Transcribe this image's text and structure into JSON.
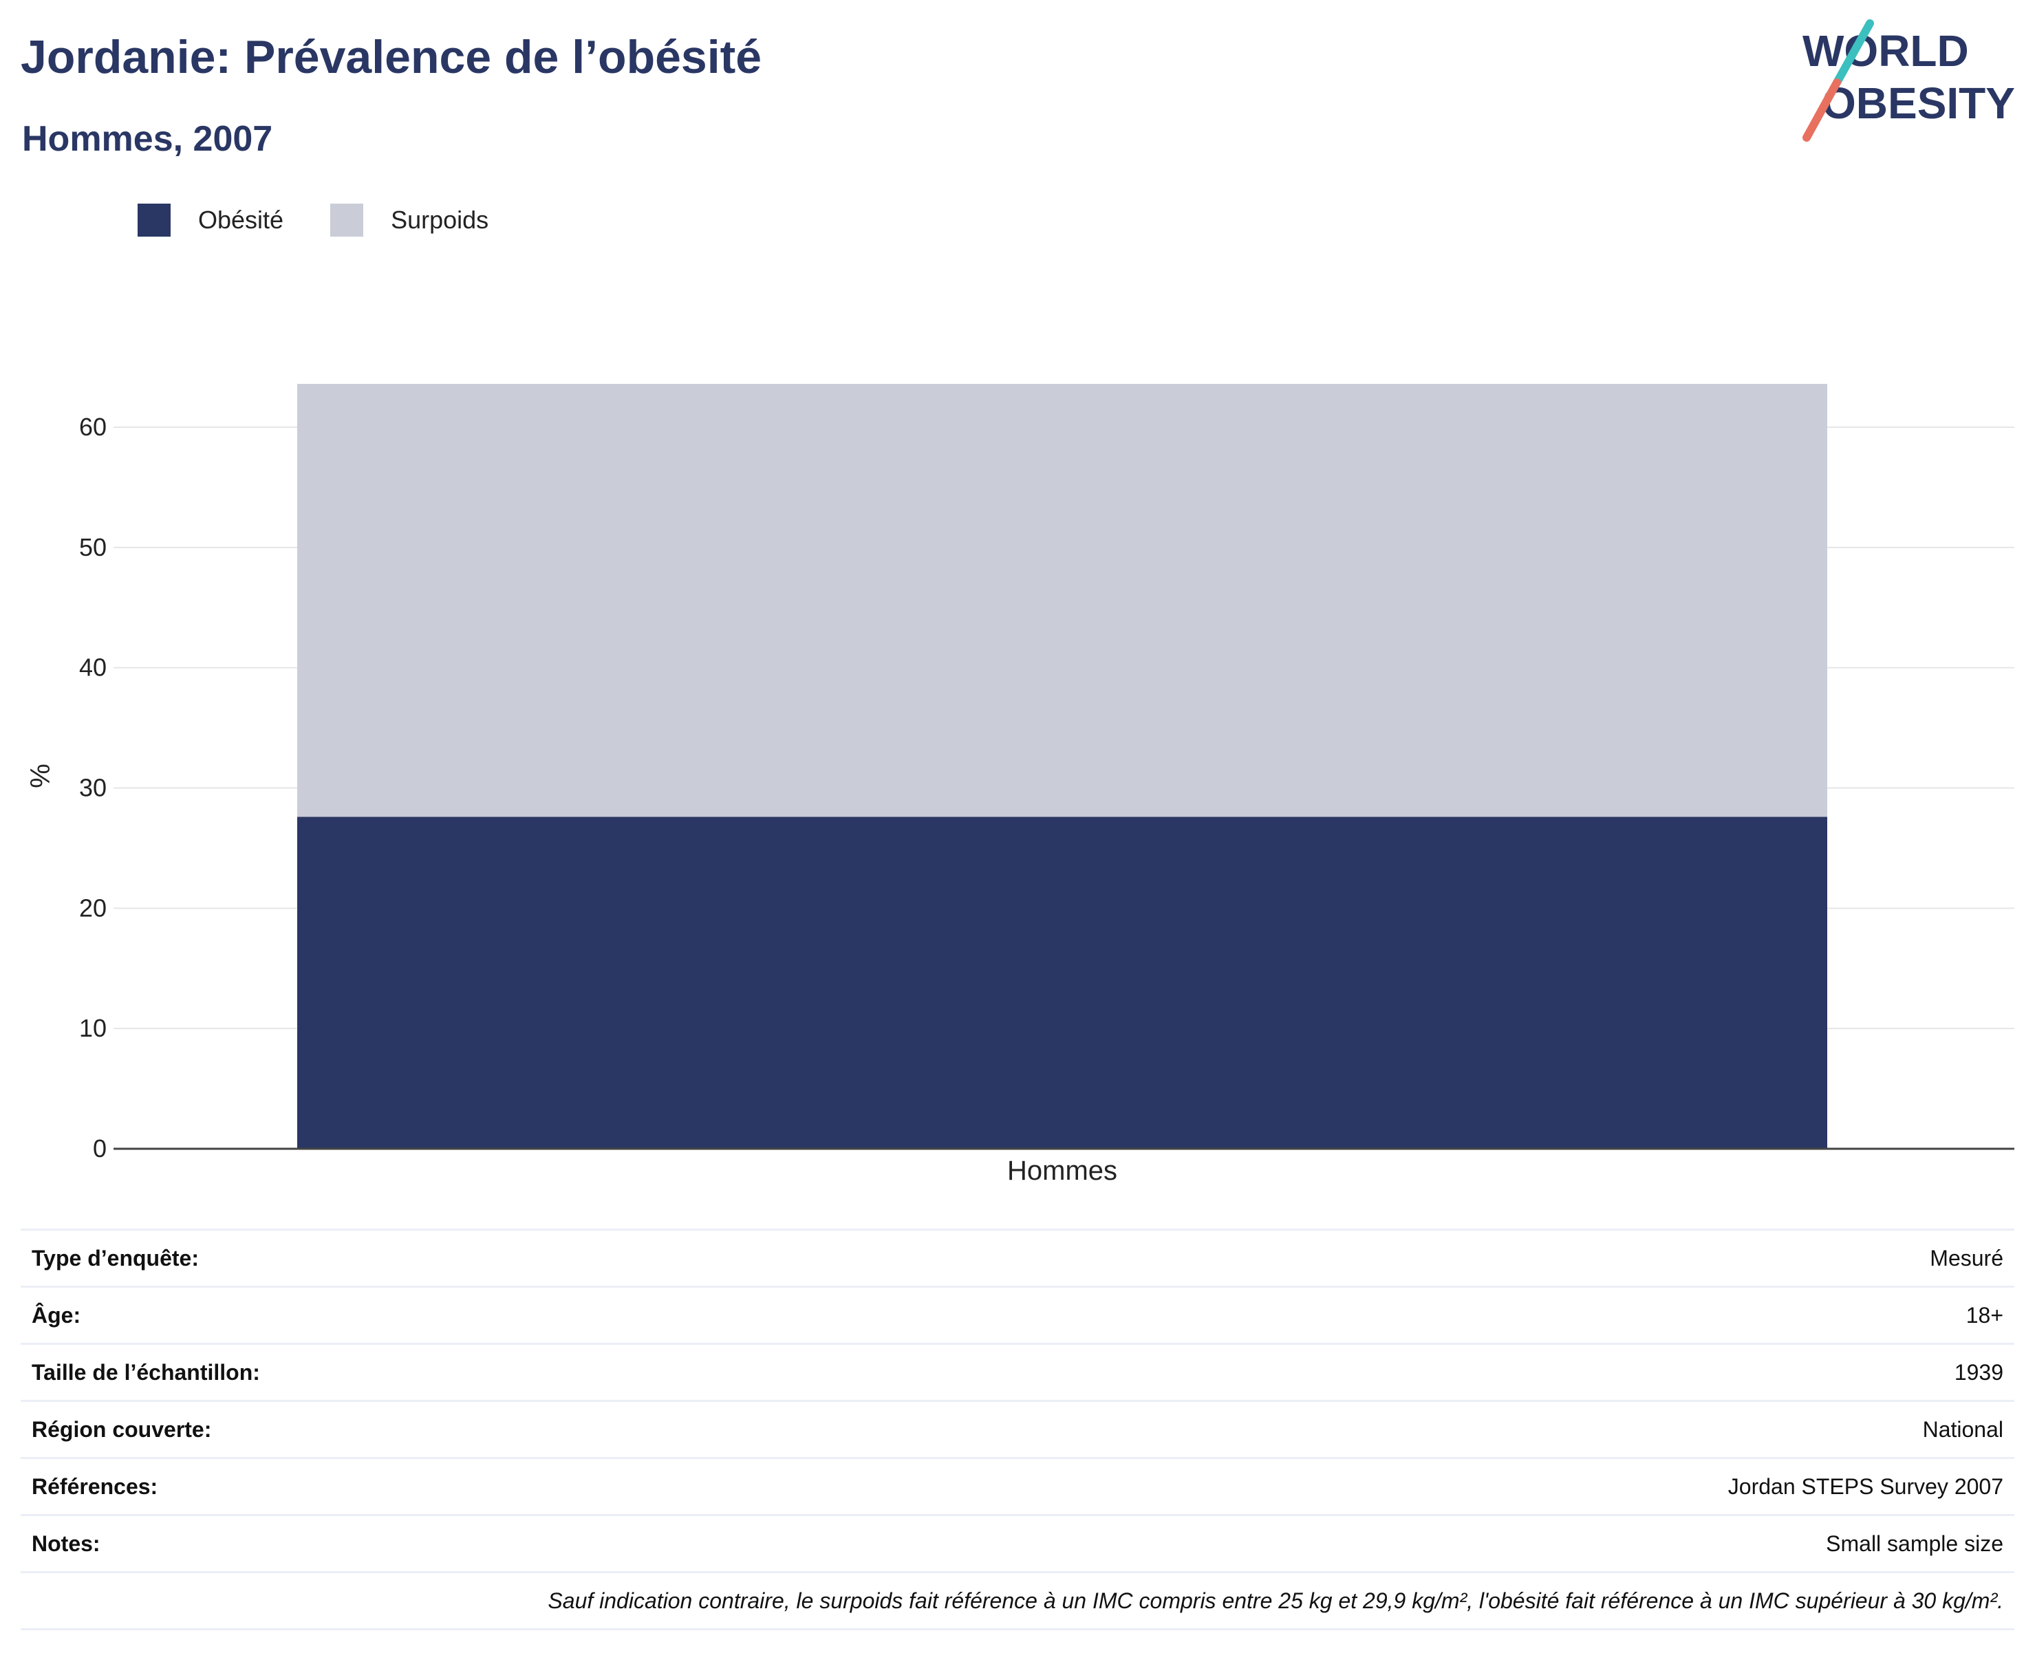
{
  "title": "Jordanie: Prévalence de l’obésité",
  "subtitle": "Hommes, 2007",
  "logo": {
    "line1": "WORLD",
    "line2": "OBESITY"
  },
  "colors": {
    "obesity": "#2a3764",
    "overweight": "#cacdd8",
    "accent_teal": "#3bbfbf",
    "accent_coral": "#e8705f"
  },
  "legend": [
    {
      "label": "Obésité",
      "color": "#2a3764"
    },
    {
      "label": "Surpoids",
      "color": "#cacdd8"
    }
  ],
  "chart_data": {
    "type": "bar",
    "stacked": true,
    "categories": [
      "Hommes"
    ],
    "series": [
      {
        "name": "Obésité",
        "values": [
          27.6
        ]
      },
      {
        "name": "Surpoids",
        "values": [
          36.0
        ]
      }
    ],
    "ylabel": "%",
    "ylim": [
      0,
      65
    ],
    "yticks": [
      0,
      10,
      20,
      30,
      40,
      50,
      60
    ],
    "grid": true,
    "legend_position": "top-left"
  },
  "info": [
    {
      "label": "Type d’enquête:",
      "value": "Mesuré"
    },
    {
      "label": "Âge:",
      "value": "18+"
    },
    {
      "label": "Taille de l’échantillon:",
      "value": "1939"
    },
    {
      "label": "Région couverte:",
      "value": "National"
    },
    {
      "label": "Références:",
      "value": "Jordan STEPS Survey 2007"
    },
    {
      "label": "Notes:",
      "value": "Small sample size"
    }
  ],
  "footnote": "Sauf indication contraire, le surpoids fait référence à un IMC compris entre 25 kg et 29,9 kg/m², l'obésité fait référence à un IMC supérieur à 30 kg/m²."
}
